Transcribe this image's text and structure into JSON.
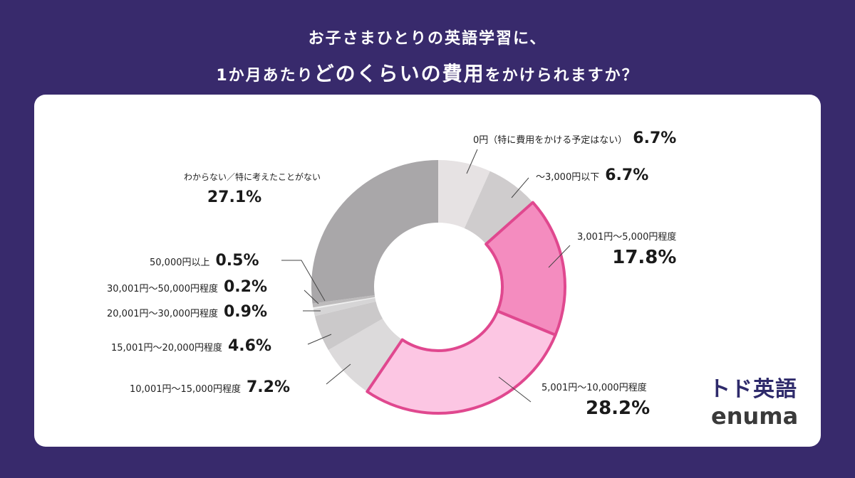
{
  "title": {
    "line1": "お子さまひとりの英語学習に、",
    "line2_pre": "1か月あたり",
    "line2_emph": "どのくらいの費用",
    "line2_post": "をかけられますか？"
  },
  "logos": {
    "brand_ja": "トド英語",
    "brand_en": "enuma"
  },
  "chart_data": {
    "type": "pie",
    "donut": true,
    "start": "top, clockwise",
    "categories": [
      "0円（特に費用をかける予定はない）",
      "～3,000円以下",
      "3,001円～5,000円程度",
      "5,001円～10,000円程度",
      "10,001円～15,000円程度",
      "15,001円～20,000円程度",
      "20,001円～30,000円程度",
      "30,001円～50,000円程度",
      "50,000円以上",
      "わからない／特に考えたことがない"
    ],
    "values": [
      6.7,
      6.7,
      17.8,
      28.2,
      7.2,
      4.6,
      0.9,
      0.2,
      0.5,
      27.1
    ],
    "labels": [
      "6.7%",
      "6.7%",
      "17.8%",
      "28.2%",
      "7.2%",
      "4.6%",
      "0.9%",
      "0.2%",
      "0.5%",
      "27.1%"
    ],
    "colors": [
      "#e6e2e3",
      "#cfcccd",
      "#f48cbf",
      "#fcc6e3",
      "#dcdadb",
      "#cbc9ca",
      "#d6d5d6",
      "#efefef",
      "#bdbbbc",
      "#a9a7a9"
    ],
    "highlight_border": "#e0488f",
    "highlighted": [
      2,
      3
    ]
  }
}
